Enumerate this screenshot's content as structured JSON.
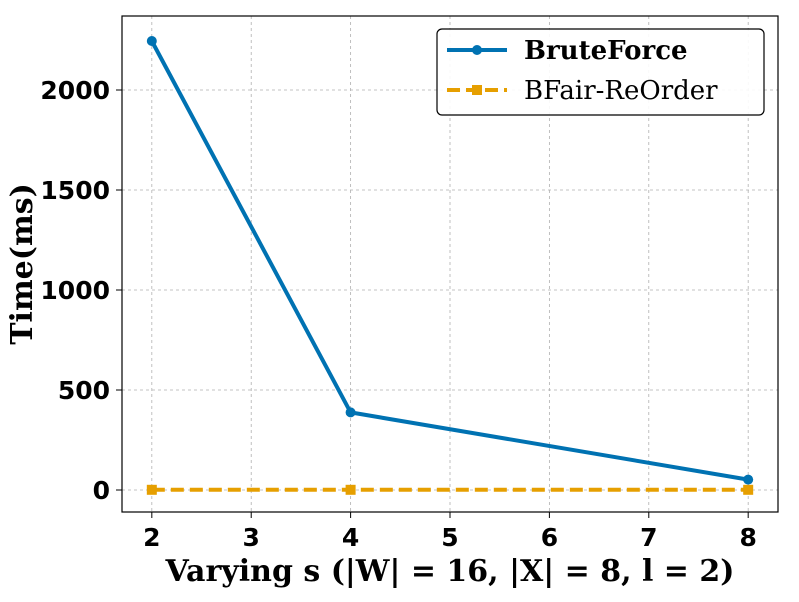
{
  "chart_data": {
    "type": "line",
    "xlabel": "Varying s (|W| = 16, |X| = 8, l = 2)",
    "ylabel": "Time(ms)",
    "x": [
      2,
      4,
      8
    ],
    "xticks": [
      2,
      3,
      4,
      5,
      6,
      7,
      8
    ],
    "yticks": [
      0,
      500,
      1000,
      1500,
      2000
    ],
    "xlim": [
      1.7,
      8.3
    ],
    "ylim": [
      -110,
      2370
    ],
    "grid": true,
    "legend_position": "top-right",
    "series": [
      {
        "name": "BruteForce",
        "values": [
          2245,
          388,
          52
        ],
        "color": "#0072b2",
        "style": "solid",
        "marker": "circle"
      },
      {
        "name": "BFair-ReOrder",
        "values": [
          1,
          1,
          1
        ],
        "color": "#e69f00",
        "style": "dashed",
        "marker": "square"
      }
    ]
  }
}
